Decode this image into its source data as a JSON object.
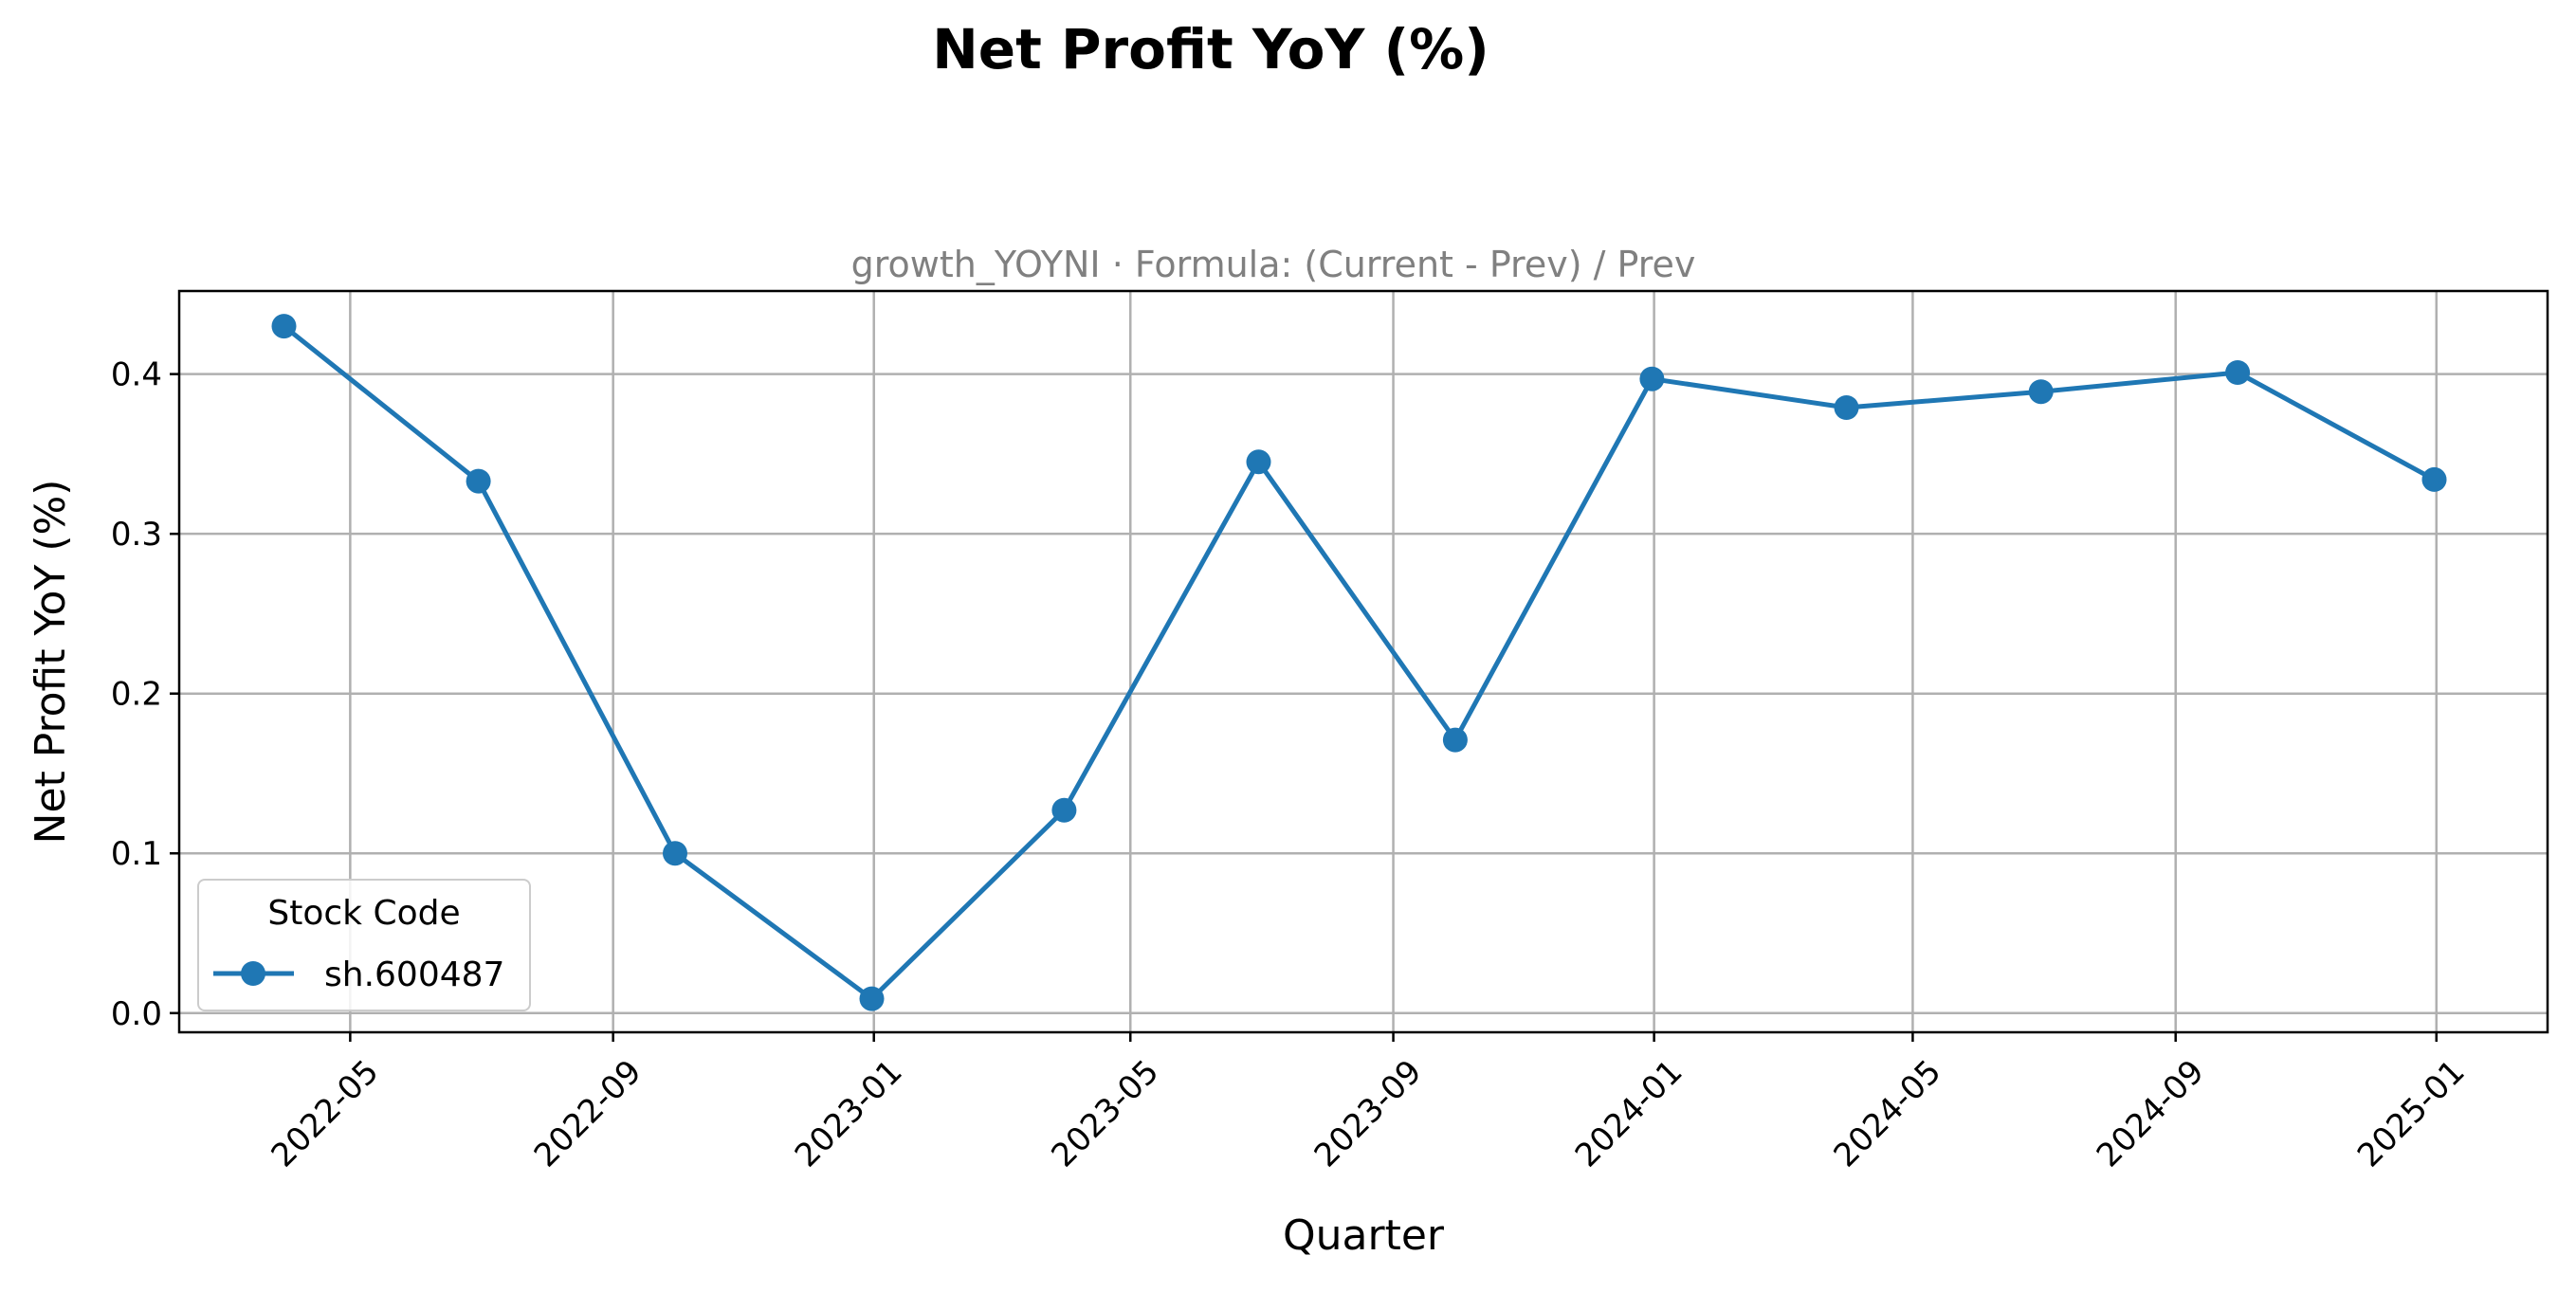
{
  "chart_data": {
    "type": "line",
    "title": "Net Profit YoY (%)",
    "subtitle": "growth_YOYNI · Formula: (Current - Prev) / Prev",
    "xlabel": "Quarter",
    "ylabel": "Net Profit YoY (%)",
    "x_ticks": [
      "2022-05",
      "2022-09",
      "2023-01",
      "2023-05",
      "2023-09",
      "2024-01",
      "2024-05",
      "2024-09",
      "2025-01"
    ],
    "y_ticks": [
      "0.0",
      "0.1",
      "0.2",
      "0.3",
      "0.4"
    ],
    "ylim": [
      -0.012,
      0.452
    ],
    "xlim": [
      "2022-02-10",
      "2025-02-22"
    ],
    "grid": true,
    "legend": {
      "title": "Stock Code",
      "placement": "lower-left"
    },
    "series": [
      {
        "name": "sh.600487",
        "color": "#1f77b4",
        "marker": "circle",
        "x": [
          "2022-03-31",
          "2022-06-30",
          "2022-09-30",
          "2022-12-31",
          "2023-03-31",
          "2023-06-30",
          "2023-09-30",
          "2023-12-31",
          "2024-03-31",
          "2024-06-30",
          "2024-09-30",
          "2024-12-31"
        ],
        "values": [
          0.43,
          0.333,
          0.1,
          0.009,
          0.127,
          0.345,
          0.171,
          0.397,
          0.379,
          0.389,
          0.401,
          0.334
        ]
      }
    ]
  }
}
